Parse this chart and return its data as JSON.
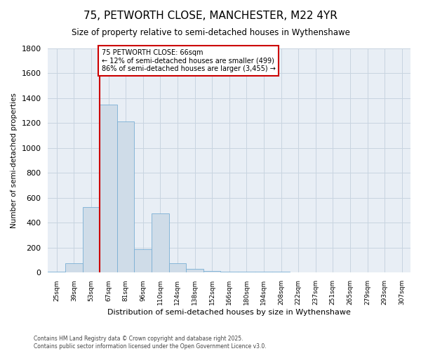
{
  "title": "75, PETWORTH CLOSE, MANCHESTER, M22 4YR",
  "subtitle": "Size of property relative to semi-detached houses in Wythenshawe",
  "xlabel": "Distribution of semi-detached houses by size in Wythenshawe",
  "ylabel": "Number of semi-detached properties",
  "footer": "Contains HM Land Registry data © Crown copyright and database right 2025.\nContains public sector information licensed under the Open Government Licence v3.0.",
  "bin_labels": [
    "25sqm",
    "39sqm",
    "53sqm",
    "67sqm",
    "81sqm",
    "96sqm",
    "110sqm",
    "124sqm",
    "138sqm",
    "152sqm",
    "166sqm",
    "180sqm",
    "194sqm",
    "208sqm",
    "222sqm",
    "237sqm",
    "251sqm",
    "265sqm",
    "279sqm",
    "293sqm",
    "307sqm"
  ],
  "bar_values": [
    5,
    75,
    525,
    1350,
    1215,
    190,
    475,
    75,
    30,
    15,
    10,
    10,
    5,
    5,
    0,
    0,
    0,
    0,
    0,
    0,
    0
  ],
  "bar_color": "#cfdce8",
  "bar_edge_color": "#7aafd4",
  "red_line_index": 3,
  "annotation_text": "75 PETWORTH CLOSE: 66sqm\n← 12% of semi-detached houses are smaller (499)\n86% of semi-detached houses are larger (3,455) →",
  "annotation_box_color": "#ffffff",
  "annotation_box_edge": "#cc0000",
  "ylim": [
    0,
    1800
  ],
  "yticks": [
    0,
    200,
    400,
    600,
    800,
    1000,
    1200,
    1400,
    1600,
    1800
  ],
  "background_color": "#ffffff",
  "plot_bg_color": "#e8eef5",
  "grid_color": "#c8d4e0"
}
